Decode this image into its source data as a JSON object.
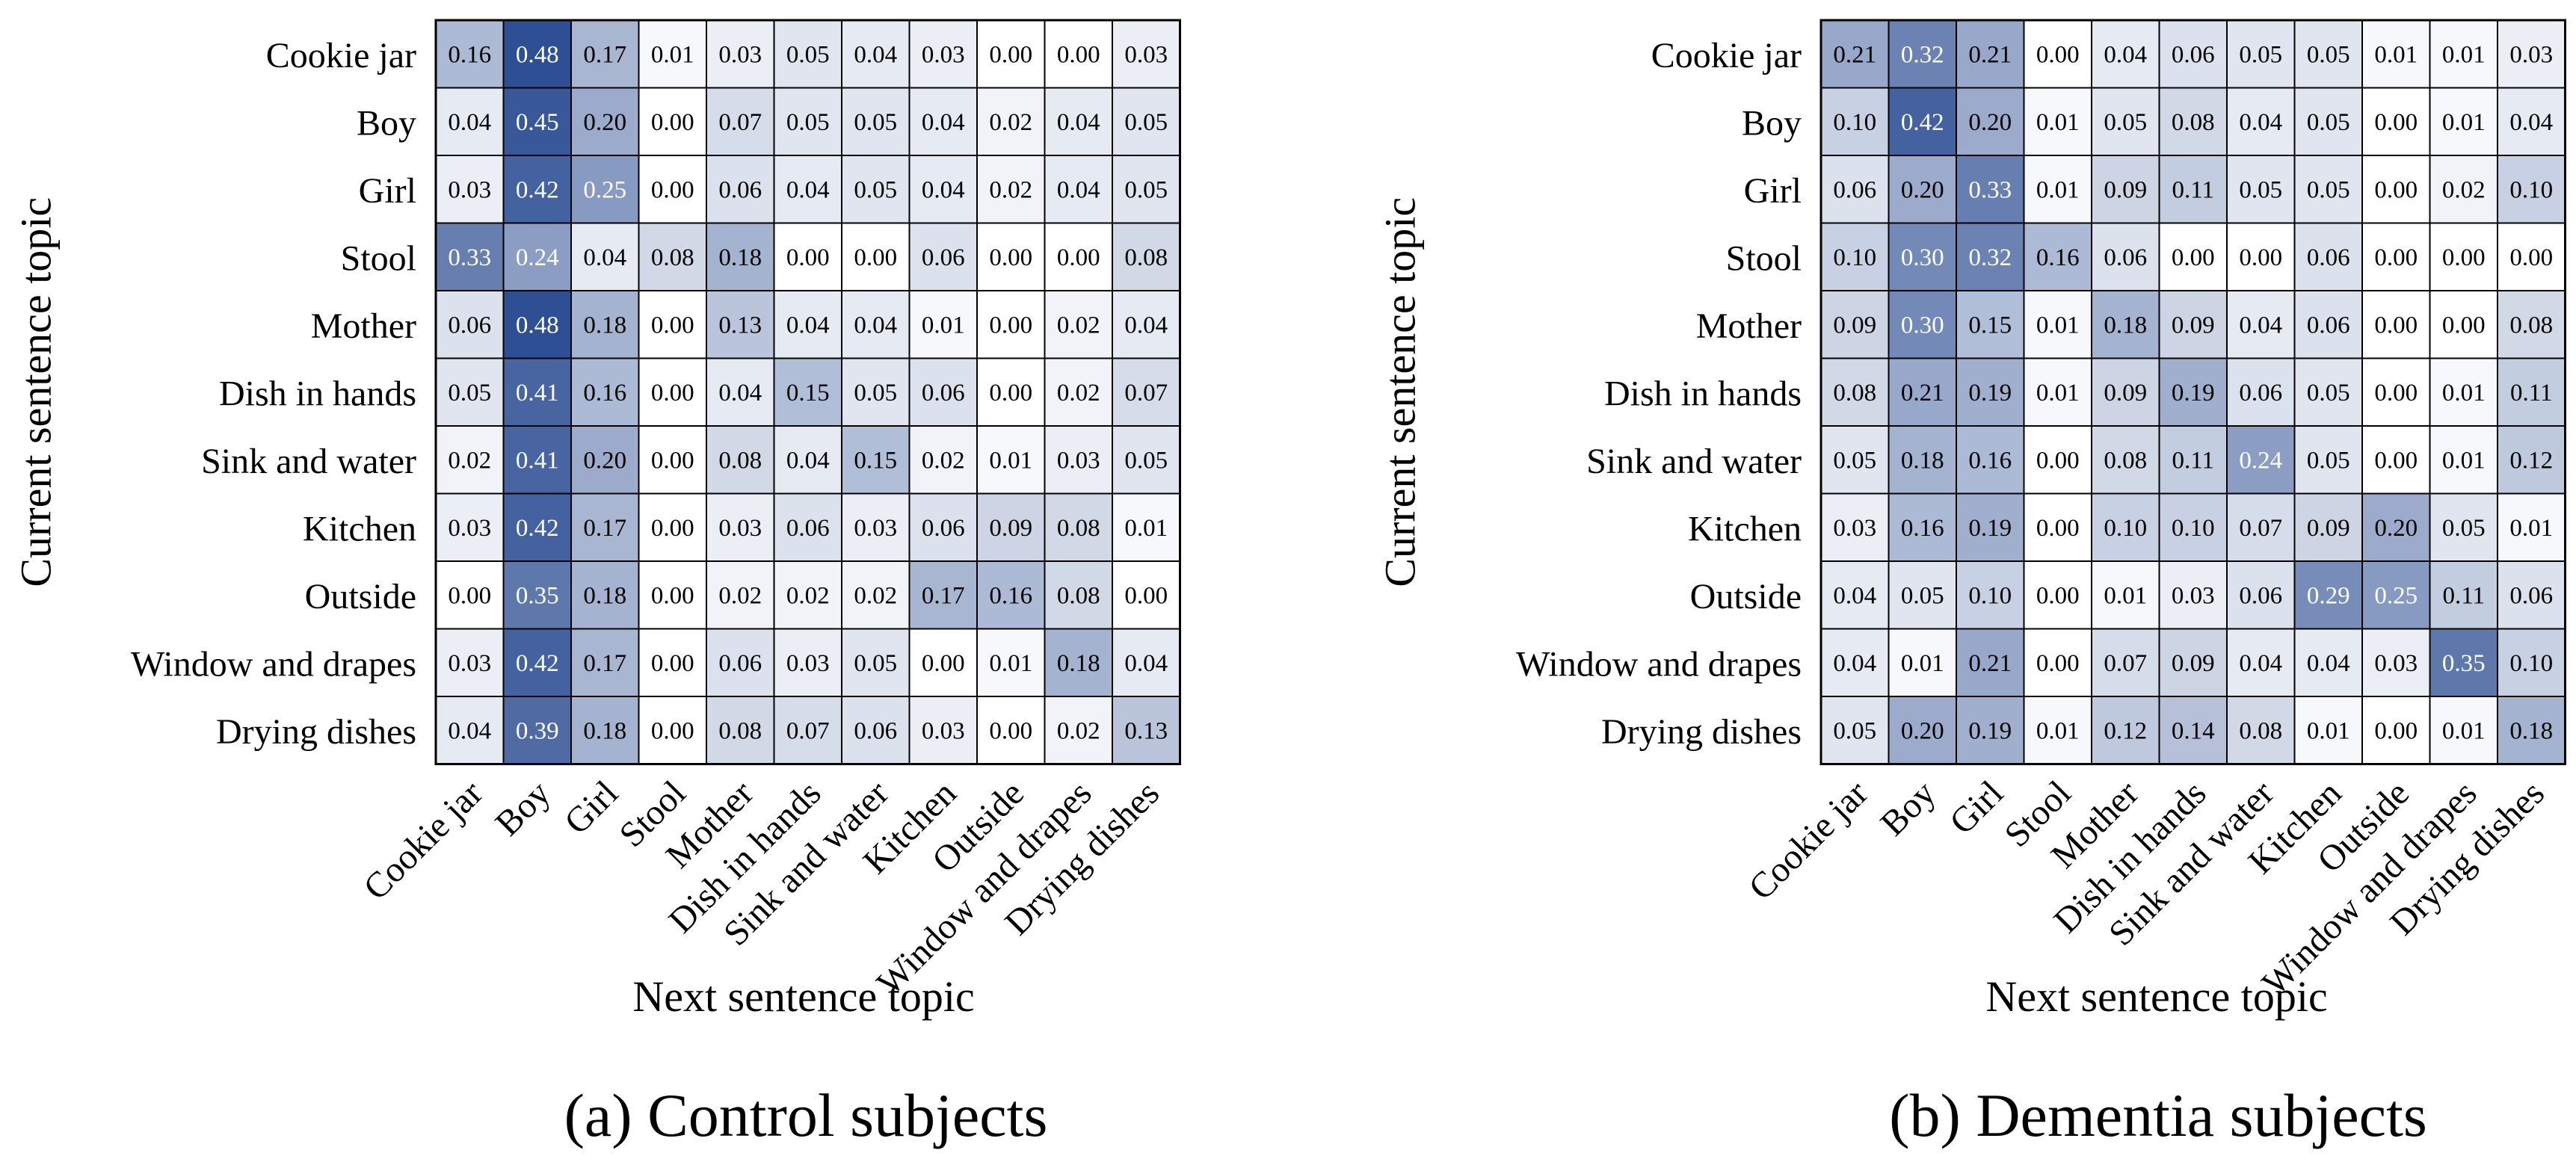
{
  "chart_data": [
    {
      "type": "heatmap",
      "caption": "(a) Control subjects",
      "xlabel": "Next sentence topic",
      "ylabel": "Current sentence topic",
      "rows": [
        "Cookie jar",
        "Boy",
        "Girl",
        "Stool",
        "Mother",
        "Dish in hands",
        "Sink and water",
        "Kitchen",
        "Outside",
        "Window and drapes",
        "Drying dishes"
      ],
      "cols": [
        "Cookie jar",
        "Boy",
        "Girl",
        "Stool",
        "Mother",
        "Dish in hands",
        "Sink and water",
        "Kitchen",
        "Outside",
        "Window and drapes",
        "Drying dishes"
      ],
      "values": [
        [
          "0.16",
          "0.48",
          "0.17",
          "0.01",
          "0.03",
          "0.05",
          "0.04",
          "0.03",
          "0.00",
          "0.00",
          "0.03"
        ],
        [
          "0.04",
          "0.45",
          "0.20",
          "0.00",
          "0.07",
          "0.05",
          "0.05",
          "0.04",
          "0.02",
          "0.04",
          "0.05"
        ],
        [
          "0.03",
          "0.42",
          "0.25",
          "0.00",
          "0.06",
          "0.04",
          "0.05",
          "0.04",
          "0.02",
          "0.04",
          "0.05"
        ],
        [
          "0.33",
          "0.24",
          "0.04",
          "0.08",
          "0.18",
          "0.00",
          "0.00",
          "0.06",
          "0.00",
          "0.00",
          "0.08"
        ],
        [
          "0.06",
          "0.48",
          "0.18",
          "0.00",
          "0.13",
          "0.04",
          "0.04",
          "0.01",
          "0.00",
          "0.02",
          "0.04"
        ],
        [
          "0.05",
          "0.41",
          "0.16",
          "0.00",
          "0.04",
          "0.15",
          "0.05",
          "0.06",
          "0.00",
          "0.02",
          "0.07"
        ],
        [
          "0.02",
          "0.41",
          "0.20",
          "0.00",
          "0.08",
          "0.04",
          "0.15",
          "0.02",
          "0.01",
          "0.03",
          "0.05"
        ],
        [
          "0.03",
          "0.42",
          "0.17",
          "0.00",
          "0.03",
          "0.06",
          "0.03",
          "0.06",
          "0.09",
          "0.08",
          "0.01"
        ],
        [
          "0.00",
          "0.35",
          "0.18",
          "0.00",
          "0.02",
          "0.02",
          "0.02",
          "0.17",
          "0.16",
          "0.08",
          "0.00"
        ],
        [
          "0.03",
          "0.42",
          "0.17",
          "0.00",
          "0.06",
          "0.03",
          "0.05",
          "0.00",
          "0.01",
          "0.18",
          "0.04"
        ],
        [
          "0.04",
          "0.39",
          "0.18",
          "0.00",
          "0.08",
          "0.07",
          "0.06",
          "0.03",
          "0.00",
          "0.02",
          "0.13"
        ]
      ]
    },
    {
      "type": "heatmap",
      "caption": "(b) Dementia subjects",
      "xlabel": "Next sentence topic",
      "ylabel": "Current sentence topic",
      "rows": [
        "Cookie jar",
        "Boy",
        "Girl",
        "Stool",
        "Mother",
        "Dish in hands",
        "Sink and water",
        "Kitchen",
        "Outside",
        "Window and drapes",
        "Drying dishes"
      ],
      "cols": [
        "Cookie jar",
        "Boy",
        "Girl",
        "Stool",
        "Mother",
        "Dish in hands",
        "Sink and water",
        "Kitchen",
        "Outside",
        "Window and drapes",
        "Drying dishes"
      ],
      "values": [
        [
          "0.21",
          "0.32",
          "0.21",
          "0.00",
          "0.04",
          "0.06",
          "0.05",
          "0.05",
          "0.01",
          "0.01",
          "0.03"
        ],
        [
          "0.10",
          "0.42",
          "0.20",
          "0.01",
          "0.05",
          "0.08",
          "0.04",
          "0.05",
          "0.00",
          "0.01",
          "0.04"
        ],
        [
          "0.06",
          "0.20",
          "0.33",
          "0.01",
          "0.09",
          "0.11",
          "0.05",
          "0.05",
          "0.00",
          "0.02",
          "0.10"
        ],
        [
          "0.10",
          "0.30",
          "0.32",
          "0.16",
          "0.06",
          "0.00",
          "0.00",
          "0.06",
          "0.00",
          "0.00",
          "0.00"
        ],
        [
          "0.09",
          "0.30",
          "0.15",
          "0.01",
          "0.18",
          "0.09",
          "0.04",
          "0.06",
          "0.00",
          "0.00",
          "0.08"
        ],
        [
          "0.08",
          "0.21",
          "0.19",
          "0.01",
          "0.09",
          "0.19",
          "0.06",
          "0.05",
          "0.00",
          "0.01",
          "0.11"
        ],
        [
          "0.05",
          "0.18",
          "0.16",
          "0.00",
          "0.08",
          "0.11",
          "0.24",
          "0.05",
          "0.00",
          "0.01",
          "0.12"
        ],
        [
          "0.03",
          "0.16",
          "0.19",
          "0.00",
          "0.10",
          "0.10",
          "0.07",
          "0.09",
          "0.20",
          "0.05",
          "0.01"
        ],
        [
          "0.04",
          "0.05",
          "0.10",
          "0.00",
          "0.01",
          "0.03",
          "0.06",
          "0.29",
          "0.25",
          "0.11",
          "0.06"
        ],
        [
          "0.04",
          "0.01",
          "0.21",
          "0.00",
          "0.07",
          "0.09",
          "0.04",
          "0.04",
          "0.03",
          "0.35",
          "0.10"
        ],
        [
          "0.05",
          "0.20",
          "0.19",
          "0.01",
          "0.12",
          "0.14",
          "0.08",
          "0.01",
          "0.00",
          "0.01",
          "0.18"
        ]
      ]
    }
  ],
  "colors": {
    "low": "#ffffff",
    "high": "#2e4f93",
    "grid": "#000000",
    "text_dark": "#000000",
    "text_light": "#ffffff"
  }
}
